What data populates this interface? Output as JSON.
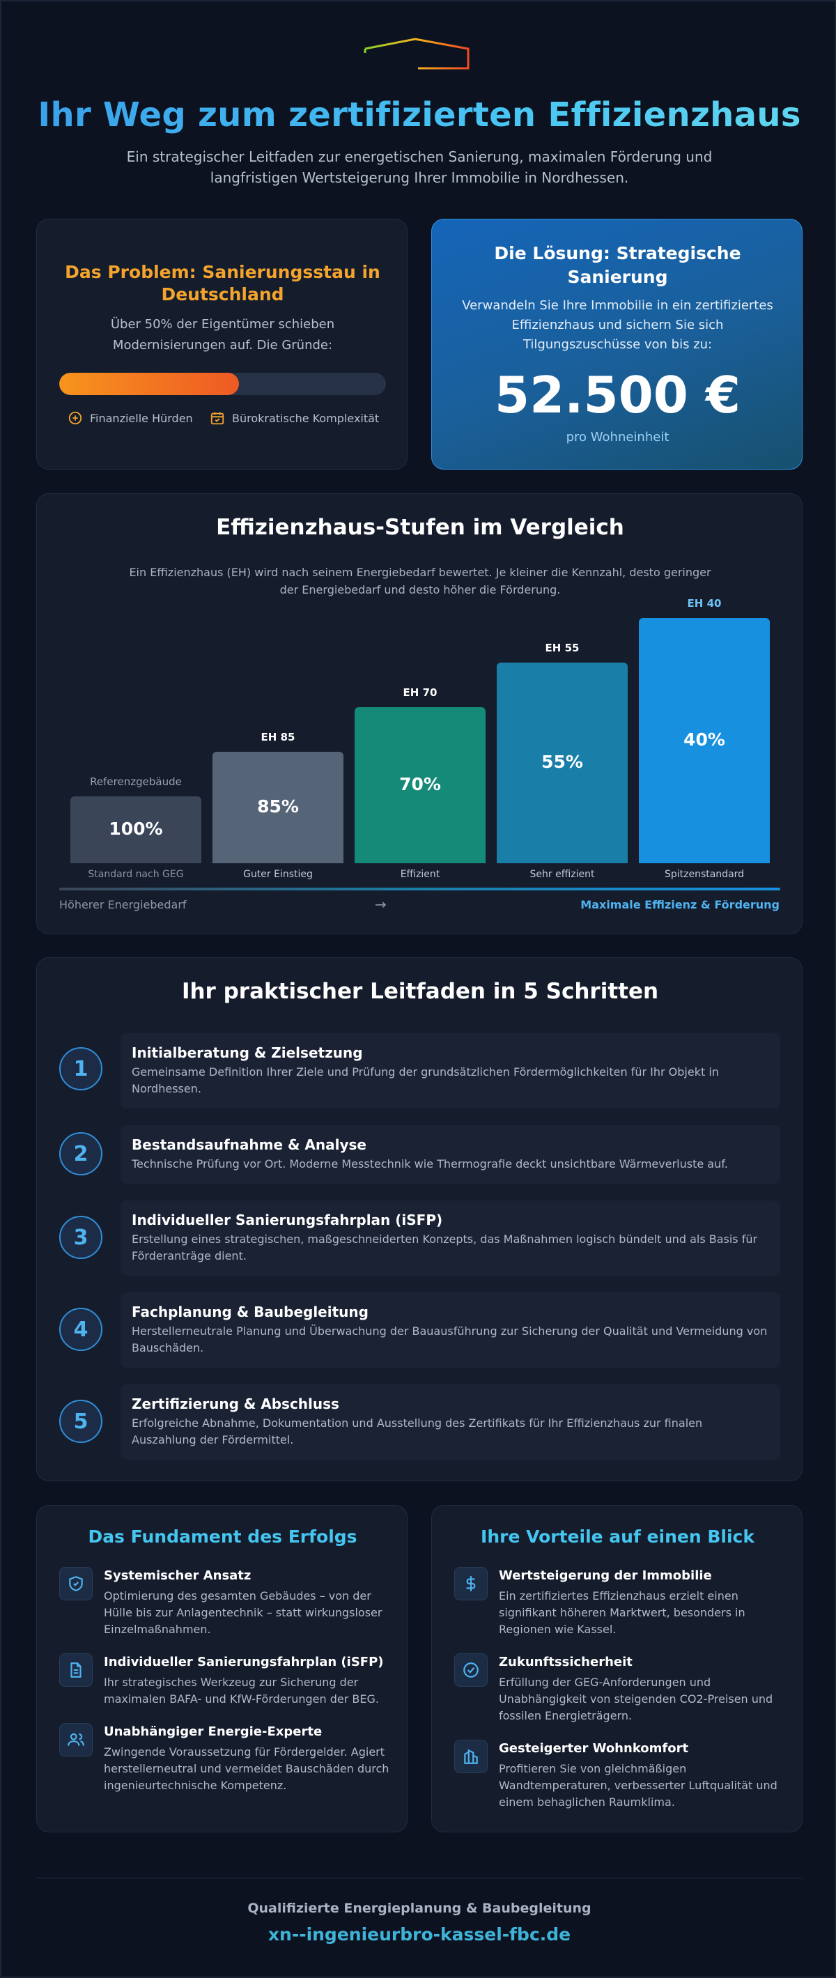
{
  "header": {
    "title": "Ihr Weg zum zertifizierten Effizienzhaus",
    "subtitle": "Ein strategischer Leitfaden zur energetischen Sanierung, maximalen Förderung und langfristigen Wertsteigerung Ihrer Immobilie in Nordhessen.",
    "logo_icon": "house-roof-logo-icon"
  },
  "problem": {
    "title": "Das Problem: Sanierungsstau in Deutschland",
    "text": "Über 50% der Eigentümer schieben Modernisierungen auf. Die Gründe:",
    "progress_fraction": 0.55,
    "reasons": [
      {
        "label": "Finanzielle Hürden",
        "icon": "coins-icon"
      },
      {
        "label": "Bürokratische Komplexität",
        "icon": "calendar-check-icon"
      }
    ],
    "accent": "#f4a42c"
  },
  "solution": {
    "title": "Die Lösung: Strategische Sanierung",
    "text": "Verwandeln Sie Ihre Immobilie in ein zertifiziertes Effizienzhaus und sichern Sie sich Tilgungszuschüsse von bis zu:",
    "amount": "52.500 €",
    "unit": "pro Wohneinheit"
  },
  "comparison": {
    "title": "Effizienzhaus-Stufen im Vergleich",
    "subtitle": "Ein Effizienzhaus (EH) wird nach seinem Energiebedarf bewertet. Je kleiner die Kennzahl, desto geringer der Energiebedarf und desto höher die Förderung.",
    "axis_left": "Höherer Energiebedarf",
    "axis_right": "Maximale Effizienz & Förderung"
  },
  "chart_data": {
    "type": "bar",
    "title": "Effizienzhaus-Stufen im Vergleich",
    "categories": [
      "Standard nach GEG",
      "Guter Einstieg",
      "Effizient",
      "Sehr effizient",
      "Spitzenstandard"
    ],
    "bar_labels": [
      "Referenzgebäude",
      "EH 85",
      "EH 70",
      "EH 55",
      "EH 40"
    ],
    "value_labels": [
      "100%",
      "85%",
      "70%",
      "55%",
      "40%"
    ],
    "values": [
      100,
      85,
      70,
      55,
      40
    ],
    "colors": [
      "#3a4558",
      "#566478",
      "#168a78",
      "#1a7fa8",
      "#1890e0"
    ],
    "label_colors": [
      "#9aa4b2",
      "#ffffff",
      "#ffffff",
      "#ffffff",
      "#6cc3f5"
    ],
    "note": "bar height grows as energy demand shrinks",
    "xlabel": "",
    "ylabel": ""
  },
  "steps": {
    "title": "Ihr praktischer Leitfaden in 5 Schritten",
    "items": [
      {
        "num": "1",
        "title": "Initialberatung & Zielsetzung",
        "text": "Gemeinsame Definition Ihrer Ziele und Prüfung der grundsätzlichen Fördermöglichkeiten für Ihr Objekt in Nordhessen."
      },
      {
        "num": "2",
        "title": "Bestandsaufnahme & Analyse",
        "text": "Technische Prüfung vor Ort. Moderne Messtechnik wie Thermografie deckt unsichtbare Wärmeverluste auf."
      },
      {
        "num": "3",
        "title": "Individueller Sanierungsfahrplan (iSFP)",
        "text": "Erstellung eines strategischen, maßgeschneiderten Konzepts, das Maßnahmen logisch bündelt und als Basis für Förderanträge dient."
      },
      {
        "num": "4",
        "title": "Fachplanung & Baubegleitung",
        "text": "Herstellerneutrale Planung und Überwachung der Bauausführung zur Sicherung der Qualität und Vermeidung von Bauschäden."
      },
      {
        "num": "5",
        "title": "Zertifizierung & Abschluss",
        "text": "Erfolgreiche Abnahme, Dokumentation und Ausstellung des Zertifikats für Ihr Effizienzhaus zur finalen Auszahlung der Fördermittel."
      }
    ]
  },
  "foundation": {
    "title": "Das Fundament des Erfolgs",
    "items": [
      {
        "icon": "shield-check-icon",
        "title": "Systemischer Ansatz",
        "text": "Optimierung des gesamten Gebäudes – von der Hülle bis zur Anlagentechnik – statt wirkungsloser Einzelmaßnahmen."
      },
      {
        "icon": "document-icon",
        "title": "Individueller Sanierungsfahrplan (iSFP)",
        "text": "Ihr strategisches Werkzeug zur Sicherung der maximalen BAFA- und KfW-Förderungen der BEG."
      },
      {
        "icon": "users-icon",
        "title": "Unabhängiger Energie-Experte",
        "text": "Zwingende Voraussetzung für Fördergelder. Agiert herstellerneutral und vermeidet Bauschäden durch ingenieurtechnische Kompetenz."
      }
    ]
  },
  "benefits": {
    "title": "Ihre Vorteile auf einen Blick",
    "items": [
      {
        "icon": "dollar-icon",
        "title": "Wertsteigerung der Immobilie",
        "text": "Ein zertifiziertes Effizienzhaus erzielt einen signifikant höheren Marktwert, besonders in Regionen wie Kassel."
      },
      {
        "icon": "check-circle-icon",
        "title": "Zukunftssicherheit",
        "text": "Erfüllung der GEG-Anforderungen und Unabhängigkeit von steigenden CO2-Preisen und fossilen Energieträgern."
      },
      {
        "icon": "building-icon",
        "title": "Gesteigerter Wohnkomfort",
        "text": "Profitieren Sie von gleichmäßigen Wandtemperaturen, verbesserter Luftqualität und einem behaglichen Raumklima."
      }
    ]
  },
  "footer": {
    "tagline": "Qualifizierte Energieplanung & Baubegleitung",
    "website": "xn--ingenieurbro-kassel-fbc.de"
  }
}
